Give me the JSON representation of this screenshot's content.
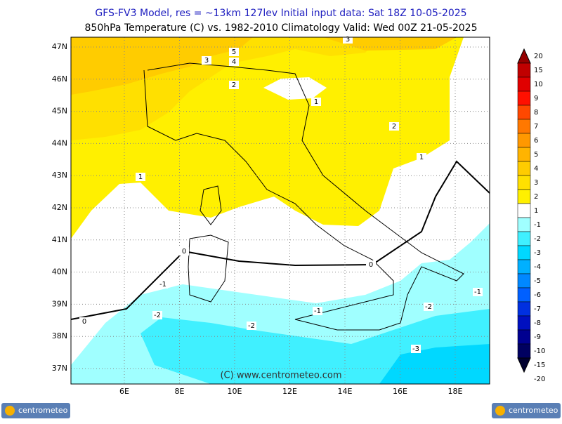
{
  "header": {
    "line1": "GFS-FV3 Model, res = ~13km 127lev   Initial input data: Sat 18Z 10-05-2025",
    "line2": "850hPa Temperature (C) vs. 1982-2010 Climatology  Valid: Wed 00Z 21-05-2025"
  },
  "map": {
    "lat_labels": [
      "47N",
      "46N",
      "45N",
      "44N",
      "43N",
      "42N",
      "41N",
      "40N",
      "39N",
      "38N",
      "37N"
    ],
    "lon_labels": [
      "6E",
      "8E",
      "10E",
      "12E",
      "14E",
      "16E",
      "18E"
    ],
    "contour_labels": [
      "5",
      "4",
      "3",
      "3",
      "2",
      "2",
      "1",
      "1",
      "1",
      "0",
      "0",
      "0",
      "-1",
      "-1",
      "-1",
      "-2",
      "-2",
      "-2",
      "-3"
    ],
    "watermark": "(C) www.centrometeo.com"
  },
  "colorbar": {
    "labels": [
      20,
      15,
      10,
      9,
      8,
      7,
      6,
      5,
      4,
      3,
      2,
      1,
      -1,
      -2,
      -3,
      -4,
      -5,
      -6,
      -7,
      -8,
      -9,
      -10,
      -15,
      -20
    ],
    "colors": [
      "#960000",
      "#c00000",
      "#e00000",
      "#ff1000",
      "#ff4800",
      "#ff7800",
      "#ff9800",
      "#ffb400",
      "#ffcc00",
      "#ffe000",
      "#fff000",
      "#ffffff",
      "#a0ffff",
      "#40f0ff",
      "#00d8ff",
      "#00b0ff",
      "#0088ff",
      "#0060ff",
      "#0030e0",
      "#0010c0",
      "#000090",
      "#000060",
      "#000030"
    ]
  },
  "footer": {
    "logo_left": "centrometeo",
    "logo_right": "centrometeo"
  }
}
